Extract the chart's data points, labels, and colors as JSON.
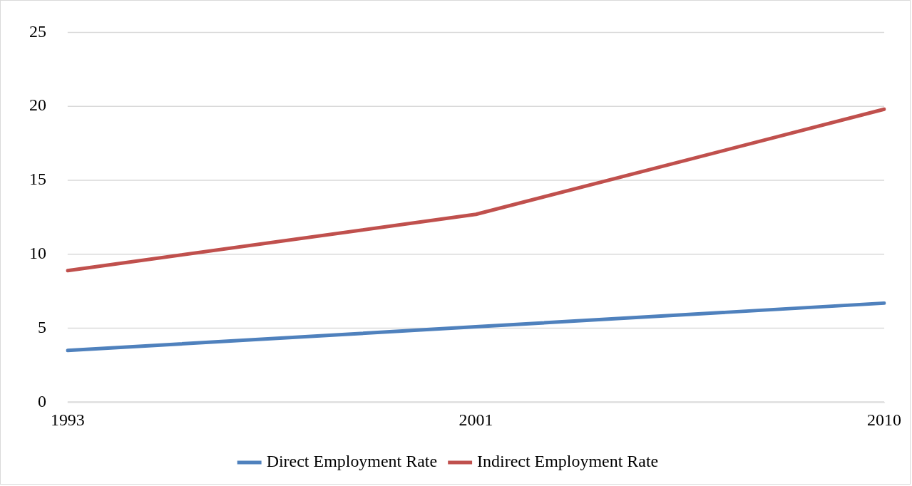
{
  "chart_data": {
    "type": "line",
    "categories": [
      "1993",
      "2001",
      "2010"
    ],
    "series": [
      {
        "name": "Direct Employment Rate",
        "color": "#4f81bd",
        "values": [
          3.5,
          5.1,
          6.7
        ]
      },
      {
        "name": "Indirect Employment Rate",
        "color": "#c0504d",
        "values": [
          8.9,
          12.7,
          19.8
        ]
      }
    ],
    "ylim": [
      0,
      25
    ],
    "yticks": [
      0,
      5,
      10,
      15,
      20,
      25
    ],
    "grid": "y",
    "legend": "bottom",
    "marker": "none",
    "line_style": "solid"
  }
}
